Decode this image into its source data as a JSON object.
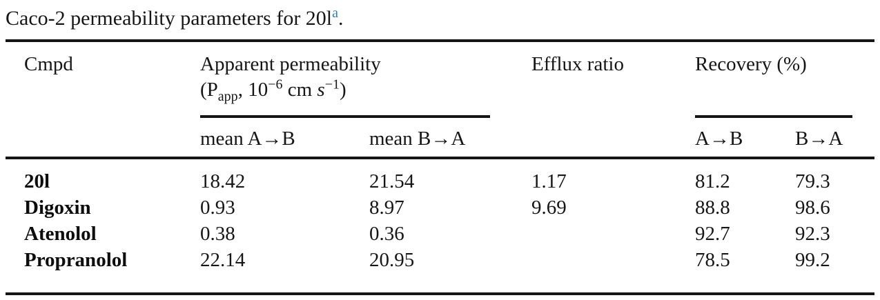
{
  "caption": {
    "text": "Caco-2 permeability parameters for 20l",
    "footnote_marker": "a",
    "period": "."
  },
  "colors": {
    "footnote_link": "#2e7eb9",
    "text": "#161616",
    "rule": "#151515"
  },
  "table": {
    "col_headers": {
      "cmpd": "Cmpd",
      "apparent_line1": "Apparent permeability",
      "papp": {
        "open": "(P",
        "sub": "app",
        "mid": ", 10",
        "sup1": "−6",
        "unit": " cm ",
        "unit_s": "s",
        "sup2": "−1",
        "close": ")"
      },
      "efflux": "Efflux ratio",
      "recovery": "Recovery (%)"
    },
    "sub_headers": {
      "mean_ab": "mean A→B",
      "mean_ba": "mean B→A",
      "rec_ab": "A→B",
      "rec_ba": "B→A"
    },
    "rows": [
      {
        "cmpd": "20l",
        "mean_ab": "18.42",
        "mean_ba": "21.54",
        "efflux": "1.17",
        "rec_ab": "81.2",
        "rec_ba": "79.3"
      },
      {
        "cmpd": "Digoxin",
        "mean_ab": "0.93",
        "mean_ba": "8.97",
        "efflux": "9.69",
        "rec_ab": "88.8",
        "rec_ba": "98.6"
      },
      {
        "cmpd": "Atenolol",
        "mean_ab": "0.38",
        "mean_ba": "0.36",
        "efflux": "",
        "rec_ab": "92.7",
        "rec_ba": "92.3"
      },
      {
        "cmpd": "Propranolol",
        "mean_ab": "22.14",
        "mean_ba": "20.95",
        "efflux": "",
        "rec_ab": "78.5",
        "rec_ba": "99.2"
      }
    ]
  }
}
